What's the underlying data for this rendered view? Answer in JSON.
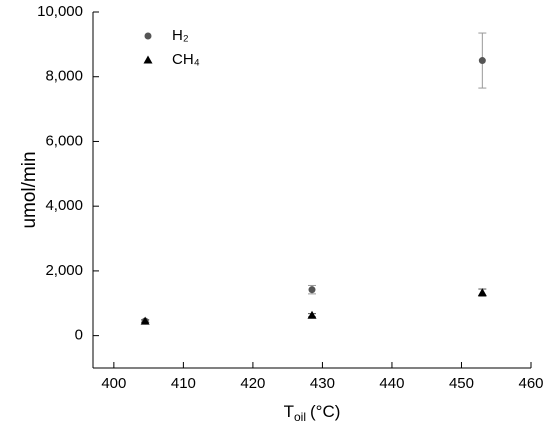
{
  "chart_data": {
    "type": "scatter",
    "x_label_main": "T",
    "x_label_sub": "oil",
    "x_label_unit": "(°C)",
    "y_label": "umol/min",
    "xlim": [
      397,
      460
    ],
    "xticks": [
      400,
      410,
      420,
      430,
      440,
      450,
      460
    ],
    "ylim": [
      -1000,
      10000
    ],
    "yticks": [
      0,
      {
        "value": 2000,
        "label": "2,000"
      },
      {
        "value": 4000,
        "label": "4,000"
      },
      {
        "value": 6000,
        "label": "6,000"
      },
      {
        "value": 8000,
        "label": "8,000"
      },
      {
        "value": 10000,
        "label": "10,000"
      }
    ],
    "legend": "upper left",
    "series": [
      {
        "name": "H₂",
        "color": "#555555",
        "marker": "circle",
        "errcolor": "#999999",
        "x": [
          404.5,
          428.5,
          453
        ],
        "values": [
          450,
          1420,
          8500
        ],
        "errors": [
          40,
          130,
          850
        ]
      },
      {
        "name": "CH₄",
        "color": "#000000",
        "marker": "triangle",
        "errcolor": "#555555",
        "x": [
          404.5,
          428.5,
          453
        ],
        "values": [
          450,
          630,
          1330
        ],
        "errors": [
          40,
          50,
          110
        ]
      }
    ]
  }
}
